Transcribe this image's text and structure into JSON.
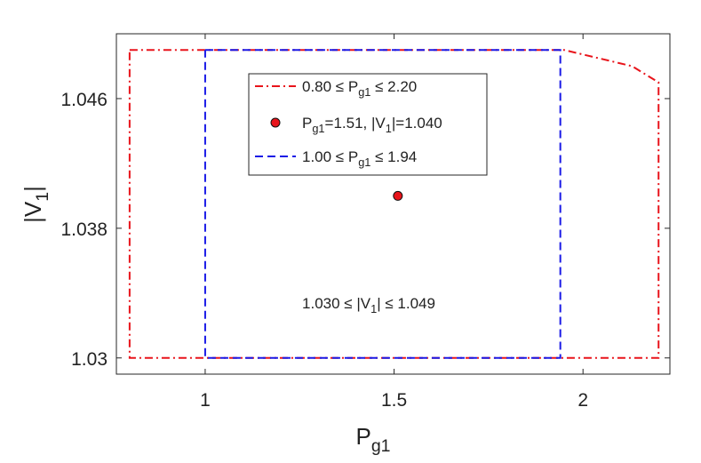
{
  "chart_data": {
    "type": "line",
    "xlabel": [
      "P",
      "g1"
    ],
    "ylabel": [
      "|V",
      "1",
      "|"
    ],
    "xlim": [
      0.765,
      2.23
    ],
    "ylim": [
      1.029,
      1.05
    ],
    "xticks": [
      1,
      1.5,
      2
    ],
    "yticks": [
      1.03,
      1.038,
      1.046
    ],
    "series": [
      {
        "name": [
          "0.80 ≤ P",
          "g1",
          " ≤ 2.20"
        ],
        "color": "#e8141b",
        "style": "dash-dot",
        "x": [
          0.8,
          1.95,
          2.13,
          2.2,
          2.2,
          0.8,
          0.8
        ],
        "values": [
          1.049,
          1.049,
          1.048,
          1.047,
          1.03,
          1.03,
          1.049
        ]
      },
      {
        "name": [
          "P",
          "g1",
          "=1.51, |V",
          "1",
          "|=1.040"
        ],
        "color": "#e8141b",
        "style": "marker",
        "x": [
          1.51
        ],
        "values": [
          1.04
        ]
      },
      {
        "name": [
          "1.00 ≤ P",
          "g1",
          " ≤ 1.94"
        ],
        "color": "#1a1ae6",
        "style": "dashed",
        "x": [
          1,
          1.94,
          1.94,
          1,
          1
        ],
        "values": [
          1.049,
          1.049,
          1.03,
          1.03,
          1.049
        ]
      }
    ],
    "annotation": [
      "1.030 ≤ |V",
      "1",
      "| ≤ 1.049"
    ]
  }
}
